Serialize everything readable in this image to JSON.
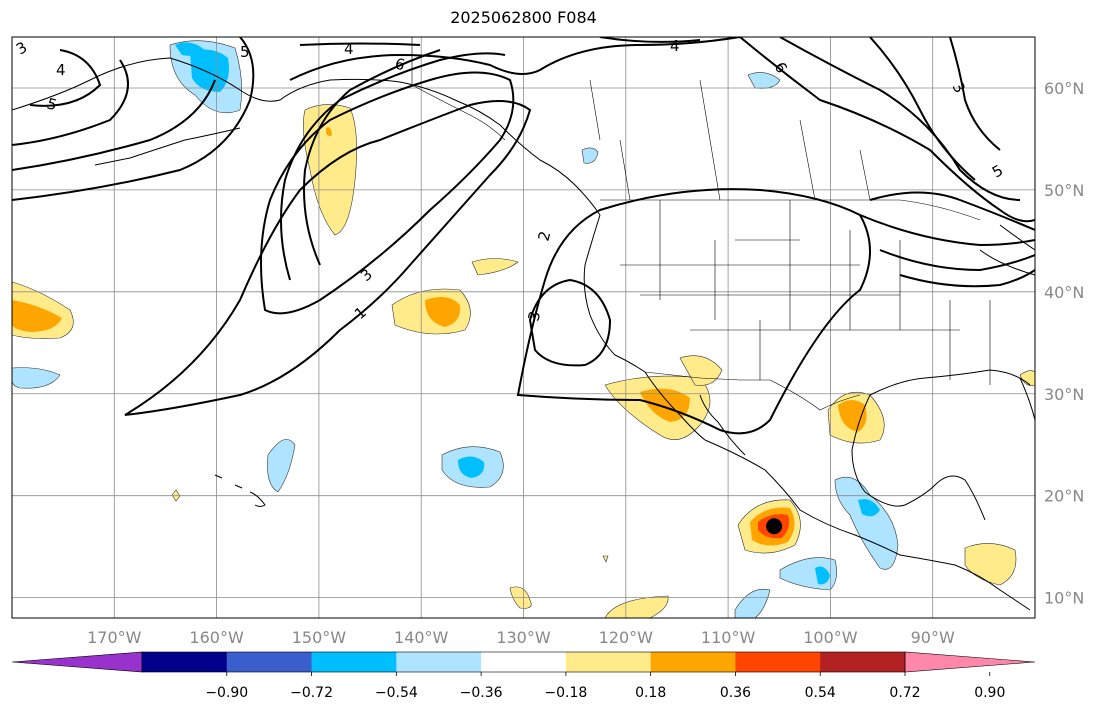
{
  "title": "2025062800 F084",
  "map": {
    "lon_range": [
      -180,
      -80
    ],
    "lat_range": [
      8,
      65
    ],
    "lon_ticks": [
      {
        "value": -170,
        "label": "170°W"
      },
      {
        "value": -160,
        "label": "160°W"
      },
      {
        "value": -150,
        "label": "150°W"
      },
      {
        "value": -140,
        "label": "140°W"
      },
      {
        "value": -130,
        "label": "130°W"
      },
      {
        "value": -120,
        "label": "120°W"
      },
      {
        "value": -110,
        "label": "110°W"
      },
      {
        "value": -100,
        "label": "100°W"
      },
      {
        "value": -90,
        "label": "90°W"
      }
    ],
    "lat_ticks": [
      {
        "value": 10,
        "label": "10°N"
      },
      {
        "value": 20,
        "label": "20°N"
      },
      {
        "value": 30,
        "label": "30°N"
      },
      {
        "value": 40,
        "label": "40°N"
      },
      {
        "value": 50,
        "label": "50°N"
      },
      {
        "value": 60,
        "label": "60°N"
      }
    ],
    "contour_labels": [
      "1",
      "2",
      "3",
      "3",
      "3",
      "3",
      "4",
      "4",
      "4",
      "5",
      "5",
      "5",
      "6",
      "6"
    ],
    "storm_marker": {
      "lon": -105.5,
      "lat": 17
    }
  },
  "colorbar": {
    "colors": [
      "#9932cc",
      "#00008b",
      "#3a5fcd",
      "#00bfff",
      "#aee4ff",
      "#ffffff",
      "#ffeb8a",
      "#ffa500",
      "#ff4500",
      "#b22222",
      "#ff88aa"
    ],
    "tick_labels": [
      "−0.90",
      "−0.72",
      "−0.54",
      "−0.36",
      "−0.18",
      "0.18",
      "0.36",
      "0.54",
      "0.72",
      "0.90"
    ]
  }
}
